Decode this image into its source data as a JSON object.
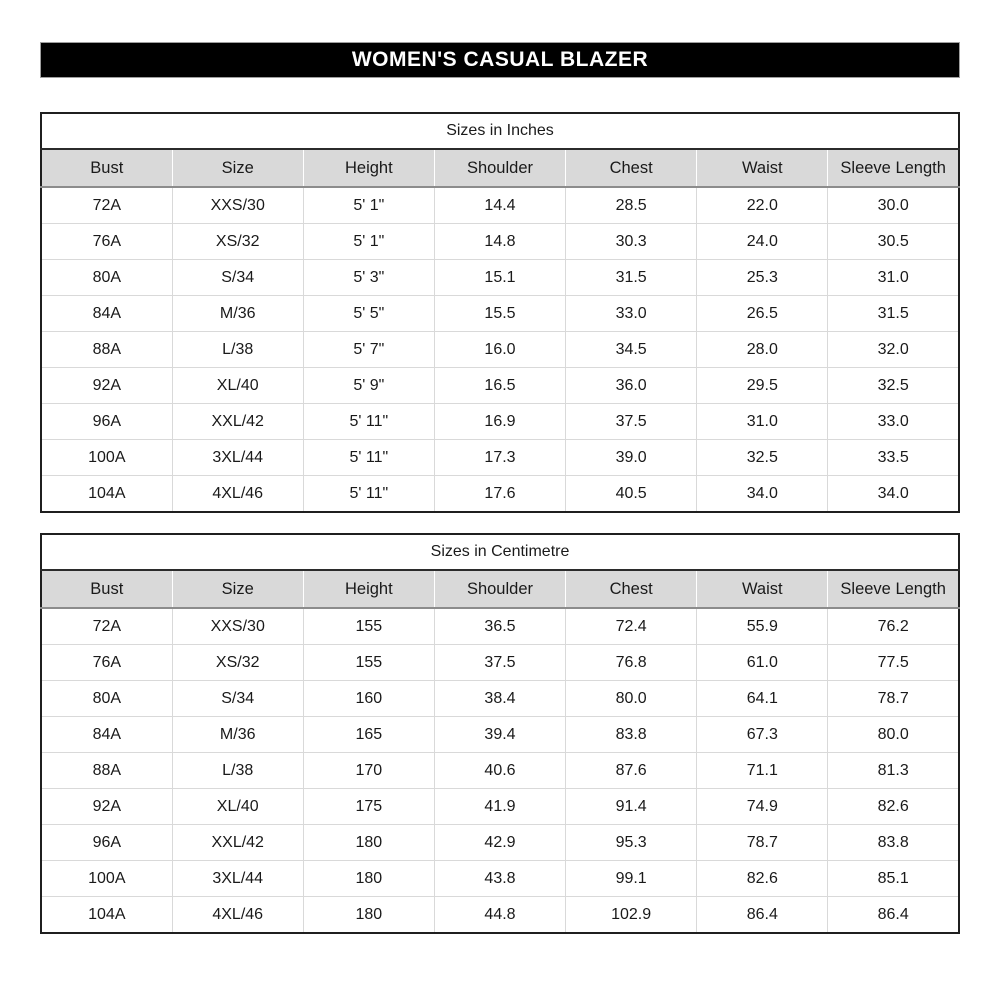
{
  "banner": {
    "title": "WOMEN'S CASUAL BLAZER",
    "bg_color": "#000000",
    "text_color": "#ffffff"
  },
  "columns": [
    "Bust",
    "Size",
    "Height",
    "Shoulder",
    "Chest",
    "Waist",
    "Sleeve Length"
  ],
  "tables": [
    {
      "id": "table-inches",
      "title": "Sizes in Inches",
      "rows": [
        [
          "72A",
          "XXS/30",
          "5' 1\"",
          "14.4",
          "28.5",
          "22.0",
          "30.0"
        ],
        [
          "76A",
          "XS/32",
          "5' 1\"",
          "14.8",
          "30.3",
          "24.0",
          "30.5"
        ],
        [
          "80A",
          "S/34",
          "5' 3\"",
          "15.1",
          "31.5",
          "25.3",
          "31.0"
        ],
        [
          "84A",
          "M/36",
          "5' 5\"",
          "15.5",
          "33.0",
          "26.5",
          "31.5"
        ],
        [
          "88A",
          "L/38",
          "5' 7\"",
          "16.0",
          "34.5",
          "28.0",
          "32.0"
        ],
        [
          "92A",
          "XL/40",
          "5' 9\"",
          "16.5",
          "36.0",
          "29.5",
          "32.5"
        ],
        [
          "96A",
          "XXL/42",
          "5' 11\"",
          "16.9",
          "37.5",
          "31.0",
          "33.0"
        ],
        [
          "100A",
          "3XL/44",
          "5' 11\"",
          "17.3",
          "39.0",
          "32.5",
          "33.5"
        ],
        [
          "104A",
          "4XL/46",
          "5' 11\"",
          "17.6",
          "40.5",
          "34.0",
          "34.0"
        ]
      ]
    },
    {
      "id": "table-cm",
      "title": "Sizes in Centimetre",
      "rows": [
        [
          "72A",
          "XXS/30",
          "155",
          "36.5",
          "72.4",
          "55.9",
          "76.2"
        ],
        [
          "76A",
          "XS/32",
          "155",
          "37.5",
          "76.8",
          "61.0",
          "77.5"
        ],
        [
          "80A",
          "S/34",
          "160",
          "38.4",
          "80.0",
          "64.1",
          "78.7"
        ],
        [
          "84A",
          "M/36",
          "165",
          "39.4",
          "83.8",
          "67.3",
          "80.0"
        ],
        [
          "88A",
          "L/38",
          "170",
          "40.6",
          "87.6",
          "71.1",
          "81.3"
        ],
        [
          "92A",
          "XL/40",
          "175",
          "41.9",
          "91.4",
          "74.9",
          "82.6"
        ],
        [
          "96A",
          "XXL/42",
          "180",
          "42.9",
          "95.3",
          "78.7",
          "83.8"
        ],
        [
          "100A",
          "3XL/44",
          "180",
          "43.8",
          "99.1",
          "82.6",
          "85.1"
        ],
        [
          "104A",
          "4XL/46",
          "180",
          "44.8",
          "102.9",
          "86.4",
          "86.4"
        ]
      ]
    }
  ],
  "colors": {
    "header_row_bg": "#d9d9d9",
    "gridline": "#d9d9d9",
    "outer_border": "#1f1f1f",
    "banner_bg": "#000000"
  }
}
